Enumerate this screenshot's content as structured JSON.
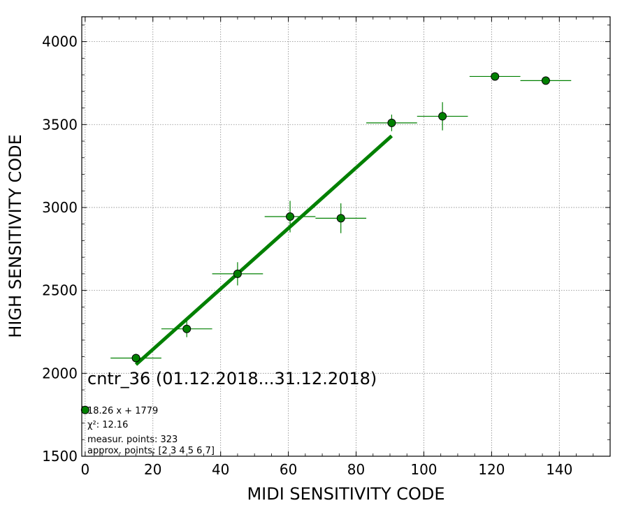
{
  "chart_data": {
    "type": "scatter",
    "title": "cntr_36 (01.12.2018...31.12.2018)",
    "xlabel": "MIDI SENSITIVITY CODE",
    "ylabel": "HIGH SENSITIVITY CODE",
    "xlim": [
      -1,
      155
    ],
    "ylim": [
      1500,
      4150
    ],
    "xticks": [
      0,
      20,
      40,
      60,
      80,
      100,
      120,
      140
    ],
    "yticks": [
      1500,
      2000,
      2500,
      3000,
      3500,
      4000
    ],
    "grid": true,
    "color": "#008000",
    "series": [
      {
        "type": "errorbar",
        "points": [
          {
            "x": 0,
            "y": 1779,
            "xerr": 0,
            "yerr": 0
          },
          {
            "x": 15,
            "y": 2092,
            "xerr": 7.5,
            "yerr": 20
          },
          {
            "x": 30,
            "y": 2268,
            "xerr": 7.5,
            "yerr": 50
          },
          {
            "x": 45,
            "y": 2600,
            "xerr": 7.5,
            "yerr": 70
          },
          {
            "x": 60.5,
            "y": 2945,
            "xerr": 7.5,
            "yerr": 95
          },
          {
            "x": 75.5,
            "y": 2935,
            "xerr": 7.5,
            "yerr": 90
          },
          {
            "x": 90.5,
            "y": 3510,
            "xerr": 7.5,
            "yerr": 50
          },
          {
            "x": 105.5,
            "y": 3550,
            "xerr": 7.5,
            "yerr": 85
          },
          {
            "x": 121,
            "y": 3790,
            "xerr": 7.5,
            "yerr": 0
          },
          {
            "x": 136,
            "y": 3765,
            "xerr": 7.5,
            "yerr": 0
          }
        ]
      },
      {
        "type": "fit-line",
        "slope": 18.26,
        "intercept": 1779,
        "x_range": [
          15,
          90.5
        ]
      }
    ],
    "annotations": [
      "18.26 x + 1779",
      "χ²: 12.16",
      "measur. points: 323",
      "approx. points: [2 3 4 5 6 7]"
    ]
  }
}
